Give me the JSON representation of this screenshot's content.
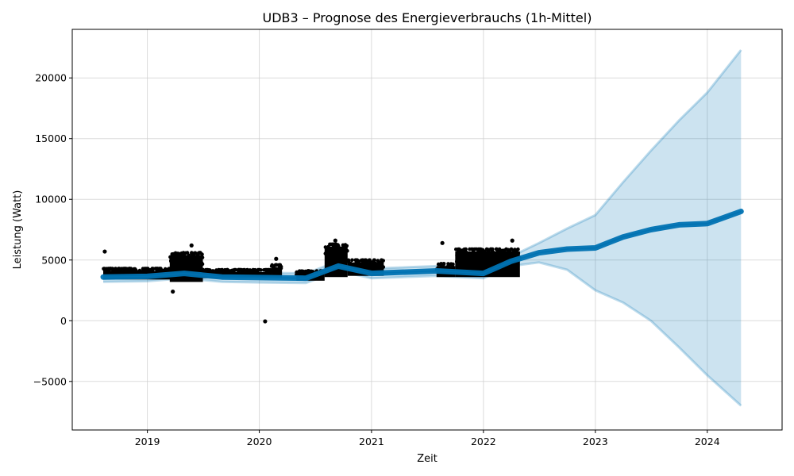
{
  "chart_data": {
    "type": "line",
    "title": "UDB3 – Prognose des Energieverbrauchs (1h-Mittel)",
    "xlabel": "Zeit",
    "ylabel": "Leistung (Watt)",
    "xlim": [
      "2018-05-01",
      "2024-09-01"
    ],
    "ylim": [
      -9000,
      24000
    ],
    "x_ticks": [
      {
        "label": "2019",
        "date": "2019-01-01"
      },
      {
        "label": "2020",
        "date": "2020-01-01"
      },
      {
        "label": "2021",
        "date": "2021-01-01"
      },
      {
        "label": "2022",
        "date": "2022-01-01"
      },
      {
        "label": "2023",
        "date": "2023-01-01"
      },
      {
        "label": "2024",
        "date": "2024-01-01"
      }
    ],
    "y_ticks": [
      {
        "label": "−5000",
        "value": -5000
      },
      {
        "label": "0",
        "value": 0
      },
      {
        "label": "5000",
        "value": 5000
      },
      {
        "label": "10000",
        "value": 10000
      },
      {
        "label": "15000",
        "value": 15000
      },
      {
        "label": "20000",
        "value": 20000
      }
    ],
    "grid": true,
    "colors": {
      "observed": "#000000",
      "forecast": "#0072B2",
      "interval": "#0072B2"
    },
    "observed_segments": [
      {
        "start": "2018-08-10",
        "end": "2019-04-20",
        "low": 3200,
        "high": 4300
      },
      {
        "start": "2019-03-15",
        "end": "2019-07-01",
        "low": 3000,
        "high": 5600
      },
      {
        "start": "2019-07-01",
        "end": "2020-02-10",
        "low": 3300,
        "high": 4200
      },
      {
        "start": "2020-02-10",
        "end": "2020-03-15",
        "low": 3300,
        "high": 4600
      },
      {
        "start": "2020-05-01",
        "end": "2020-08-01",
        "low": 3100,
        "high": 4100
      },
      {
        "start": "2020-08-01",
        "end": "2020-10-15",
        "low": 3400,
        "high": 6300
      },
      {
        "start": "2020-10-15",
        "end": "2021-02-10",
        "low": 3500,
        "high": 5000
      },
      {
        "start": "2021-08-01",
        "end": "2021-10-01",
        "low": 3400,
        "high": 4700
      },
      {
        "start": "2021-10-01",
        "end": "2022-04-30",
        "low": 3400,
        "high": 5900
      }
    ],
    "observed_outliers": [
      {
        "x": "2018-08-15",
        "y": 5700
      },
      {
        "x": "2019-03-25",
        "y": 2400
      },
      {
        "x": "2019-05-25",
        "y": 6200
      },
      {
        "x": "2020-01-20",
        "y": -50
      },
      {
        "x": "2020-02-25",
        "y": 5100
      },
      {
        "x": "2020-09-05",
        "y": 6600
      },
      {
        "x": "2021-08-20",
        "y": 6400
      },
      {
        "x": "2022-04-05",
        "y": 6600
      }
    ],
    "forecast": [
      {
        "x": "2018-08-10",
        "y": 3600,
        "lower": 3200,
        "upper": 4000
      },
      {
        "x": "2019-01-01",
        "y": 3650,
        "lower": 3250,
        "upper": 4050
      },
      {
        "x": "2019-05-01",
        "y": 3900,
        "lower": 3500,
        "upper": 4300
      },
      {
        "x": "2019-09-01",
        "y": 3600,
        "lower": 3200,
        "upper": 4000
      },
      {
        "x": "2020-01-01",
        "y": 3550,
        "lower": 3150,
        "upper": 3950
      },
      {
        "x": "2020-06-01",
        "y": 3500,
        "lower": 3100,
        "upper": 3900
      },
      {
        "x": "2020-09-15",
        "y": 4500,
        "lower": 4100,
        "upper": 4900
      },
      {
        "x": "2021-01-01",
        "y": 3900,
        "lower": 3500,
        "upper": 4300
      },
      {
        "x": "2021-08-01",
        "y": 4100,
        "lower": 3700,
        "upper": 4500
      },
      {
        "x": "2022-01-01",
        "y": 3900,
        "lower": 3500,
        "upper": 4300
      },
      {
        "x": "2022-04-01",
        "y": 4900,
        "lower": 4500,
        "upper": 5300
      },
      {
        "x": "2022-07-01",
        "y": 5600,
        "lower": 4800,
        "upper": 6400
      },
      {
        "x": "2022-10-01",
        "y": 5900,
        "lower": 4200,
        "upper": 7600
      },
      {
        "x": "2023-01-01",
        "y": 6000,
        "lower": 2500,
        "upper": 8700
      },
      {
        "x": "2023-04-01",
        "y": 6900,
        "lower": 1500,
        "upper": 11400
      },
      {
        "x": "2023-07-01",
        "y": 7500,
        "lower": 0,
        "upper": 14000
      },
      {
        "x": "2023-10-01",
        "y": 7900,
        "lower": -2200,
        "upper": 16500
      },
      {
        "x": "2024-01-01",
        "y": 8000,
        "lower": -4500,
        "upper": 18800
      },
      {
        "x": "2024-04-20",
        "y": 9000,
        "lower": -7000,
        "upper": 22300
      }
    ]
  }
}
